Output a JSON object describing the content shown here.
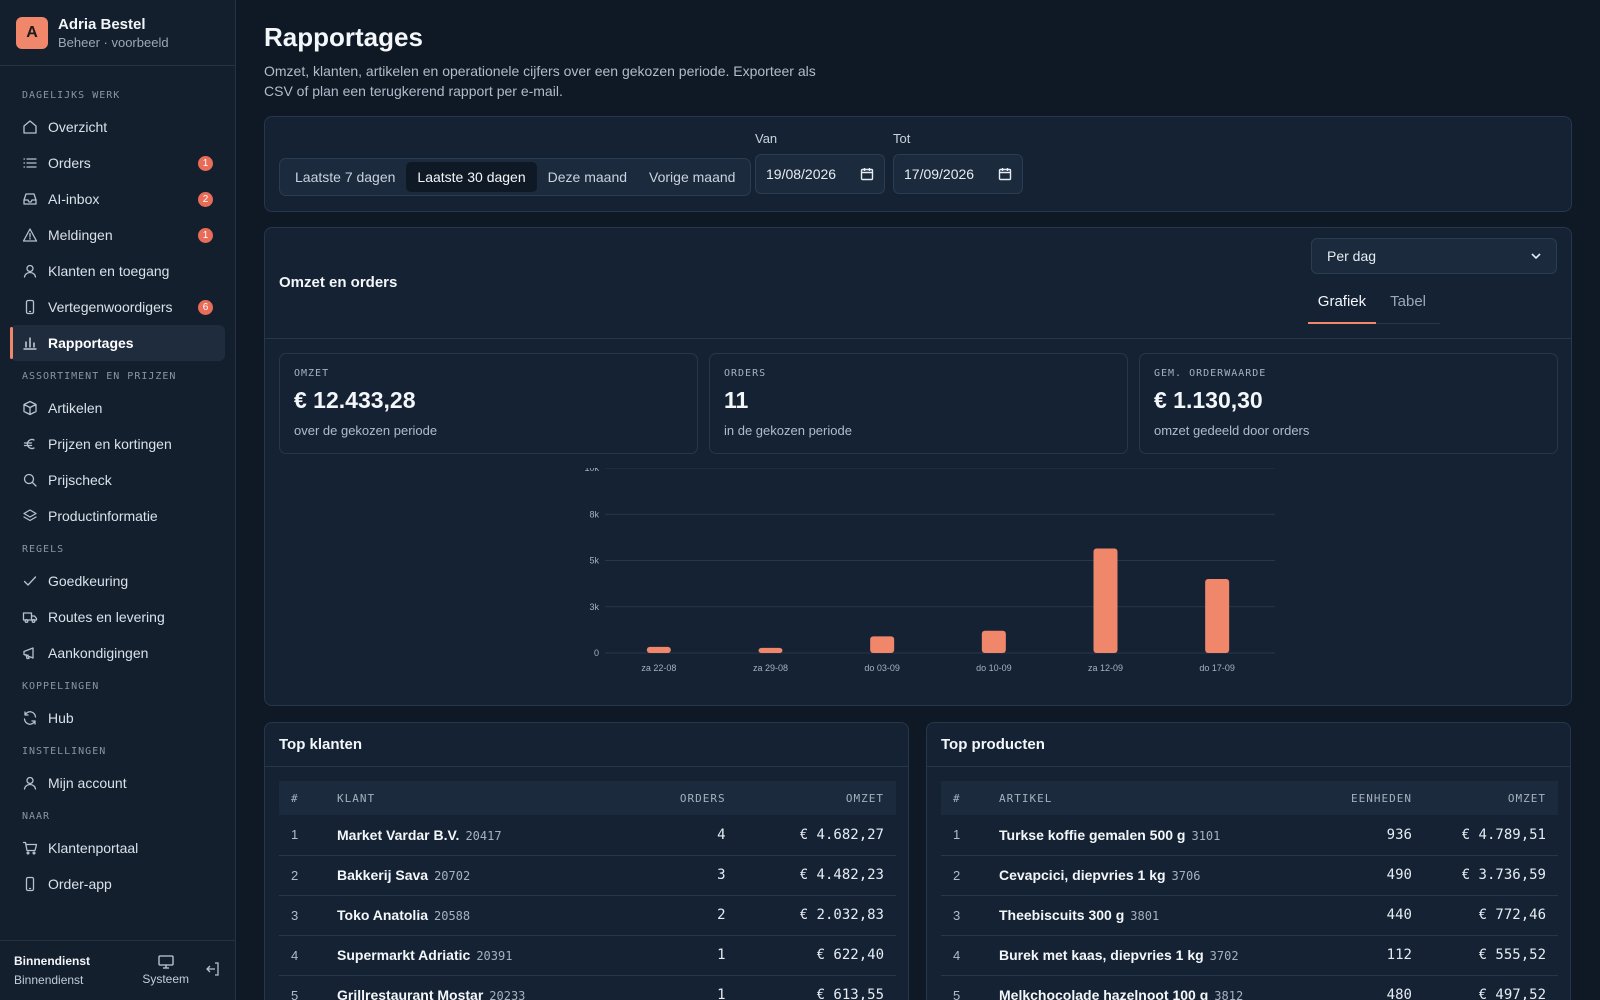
{
  "user": {
    "initial": "A",
    "name": "Adria Bestel",
    "subtitle": "Beheer · voorbeeld"
  },
  "sidebar": {
    "sections": [
      {
        "title": "DAGELIJKS WERK",
        "items": [
          {
            "label": "Overzicht",
            "icon": "home-icon"
          },
          {
            "label": "Orders",
            "icon": "list-icon",
            "badge": "1"
          },
          {
            "label": "AI-inbox",
            "icon": "inbox-icon",
            "badge": "2"
          },
          {
            "label": "Meldingen",
            "icon": "warning-icon",
            "badge": "1"
          },
          {
            "label": "Klanten en toegang",
            "icon": "user-icon"
          },
          {
            "label": "Vertegenwoordigers",
            "icon": "phone-icon",
            "badge": "6"
          },
          {
            "label": "Rapportages",
            "icon": "bar-chart-icon",
            "active": true
          }
        ]
      },
      {
        "title": "ASSORTIMENT EN PRIJZEN",
        "items": [
          {
            "label": "Artikelen",
            "icon": "box-icon"
          },
          {
            "label": "Prijzen en kortingen",
            "icon": "euro-icon"
          },
          {
            "label": "Prijscheck",
            "icon": "search-icon"
          },
          {
            "label": "Productinformatie",
            "icon": "layers-icon"
          }
        ]
      },
      {
        "title": "REGELS",
        "items": [
          {
            "label": "Goedkeuring",
            "icon": "check-icon"
          },
          {
            "label": "Routes en levering",
            "icon": "truck-icon"
          },
          {
            "label": "Aankondigingen",
            "icon": "megaphone-icon"
          }
        ]
      },
      {
        "title": "KOPPELINGEN",
        "items": [
          {
            "label": "Hub",
            "icon": "refresh-icon"
          }
        ]
      },
      {
        "title": "INSTELLINGEN",
        "items": [
          {
            "label": "Mijn account",
            "icon": "user-icon"
          }
        ]
      },
      {
        "title": "NAAR",
        "items": [
          {
            "label": "Klantenportaal",
            "icon": "cart-icon"
          },
          {
            "label": "Order-app",
            "icon": "phone-icon"
          }
        ]
      }
    ],
    "footer": {
      "role": "Binnendienst",
      "role_sub": "Binnendienst",
      "system_label": "Systeem"
    }
  },
  "page": {
    "title": "Rapportages",
    "subtitle": "Omzet, klanten, artikelen en operationele cijfers over een gekozen periode. Exporteer als CSV of plan een terugkerend rapport per e-mail."
  },
  "filters": {
    "presets": [
      "Laatste 7 dagen",
      "Laatste 30 dagen",
      "Deze maand",
      "Vorige maand"
    ],
    "active_preset": 1,
    "from_label": "Van",
    "from_value": "19/08/2026",
    "to_label": "Tot",
    "to_value": "17/09/2026"
  },
  "revenue": {
    "title": "Omzet en orders",
    "granularity": "Per dag",
    "tabs": [
      "Grafiek",
      "Tabel"
    ],
    "active_tab": 0,
    "kpis": [
      {
        "label": "OMZET",
        "value": "€ 12.433,28",
        "note": "over de gekozen periode"
      },
      {
        "label": "ORDERS",
        "value": "11",
        "note": "in de gekozen periode"
      },
      {
        "label": "GEM. ORDERWAARDE",
        "value": "€ 1.130,30",
        "note": "omzet gedeeld door orders"
      }
    ]
  },
  "chart_data": {
    "type": "bar",
    "categories": [
      "za 22-08",
      "za 29-08",
      "do 03-09",
      "do 10-09",
      "za 12-09",
      "do 17-09"
    ],
    "values": [
      330,
      280,
      900,
      1200,
      5650,
      4000
    ],
    "yticks": [
      "0",
      "3k",
      "5k",
      "8k",
      "10k"
    ],
    "ytick_values": [
      0,
      2500,
      5000,
      7500,
      10000
    ],
    "ylim": [
      0,
      10000
    ],
    "grid": true,
    "color": "#f0876b"
  },
  "top_customers": {
    "title": "Top klanten",
    "columns": [
      "#",
      "KLANT",
      "ORDERS",
      "OMZET"
    ],
    "rows": [
      {
        "rank": "1",
        "name": "Market Vardar B.V.",
        "code": "20417",
        "orders": "4",
        "revenue": "€ 4.682,27"
      },
      {
        "rank": "2",
        "name": "Bakkerij Sava",
        "code": "20702",
        "orders": "3",
        "revenue": "€ 4.482,23"
      },
      {
        "rank": "3",
        "name": "Toko Anatolia",
        "code": "20588",
        "orders": "2",
        "revenue": "€ 2.032,83"
      },
      {
        "rank": "4",
        "name": "Supermarkt Adriatic",
        "code": "20391",
        "orders": "1",
        "revenue": "€ 622,40"
      },
      {
        "rank": "5",
        "name": "Grillrestaurant Mostar",
        "code": "20233",
        "orders": "1",
        "revenue": "€ 613,55"
      }
    ]
  },
  "top_products": {
    "title": "Top producten",
    "columns": [
      "#",
      "ARTIKEL",
      "EENHEDEN",
      "OMZET"
    ],
    "rows": [
      {
        "rank": "1",
        "name": "Turkse koffie gemalen 500 g",
        "code": "3101",
        "units": "936",
        "revenue": "€ 4.789,51"
      },
      {
        "rank": "2",
        "name": "Cevapcici, diepvries 1 kg",
        "code": "3706",
        "units": "490",
        "revenue": "€ 3.736,59"
      },
      {
        "rank": "3",
        "name": "Theebiscuits 300 g",
        "code": "3801",
        "units": "440",
        "revenue": "€ 772,46"
      },
      {
        "rank": "4",
        "name": "Burek met kaas, diepvries 1 kg",
        "code": "3702",
        "units": "112",
        "revenue": "€ 555,52"
      },
      {
        "rank": "5",
        "name": "Melkchocolade hazelnoot 100 g",
        "code": "3812",
        "units": "480",
        "revenue": "€ 497,52"
      }
    ]
  }
}
